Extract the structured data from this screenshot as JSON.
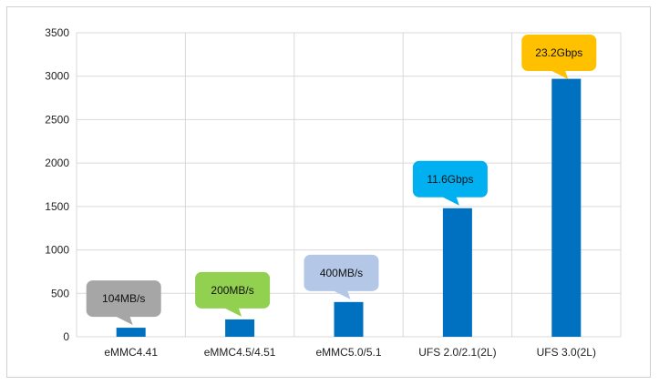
{
  "chart_data": {
    "type": "bar",
    "categories": [
      "eMMC4.41",
      "eMMC4.5/4.51",
      "eMMC5.0/5.1",
      "UFS 2.0/2.1(2L)",
      "UFS 3.0(2L)"
    ],
    "values": [
      104,
      200,
      400,
      1480,
      2970
    ],
    "ylim": [
      0,
      3500
    ],
    "yticks": [
      0,
      500,
      1000,
      1500,
      2000,
      2500,
      3000,
      3500
    ],
    "grid": true,
    "bar_color": "#0070c0",
    "annotations": [
      {
        "category": "eMMC4.41",
        "text": "104MB/s",
        "color": "#a6a6a6"
      },
      {
        "category": "eMMC4.5/4.51",
        "text": "200MB/s",
        "color": "#92d050"
      },
      {
        "category": "eMMC5.0/5.1",
        "text": "400MB/s",
        "color": "#b4c7e7"
      },
      {
        "category": "UFS 2.0/2.1(2L)",
        "text": "11.6Gbps",
        "color": "#00b0f0"
      },
      {
        "category": "UFS 3.0(2L)",
        "text": "23.2Gbps",
        "color": "#ffc000"
      }
    ]
  }
}
